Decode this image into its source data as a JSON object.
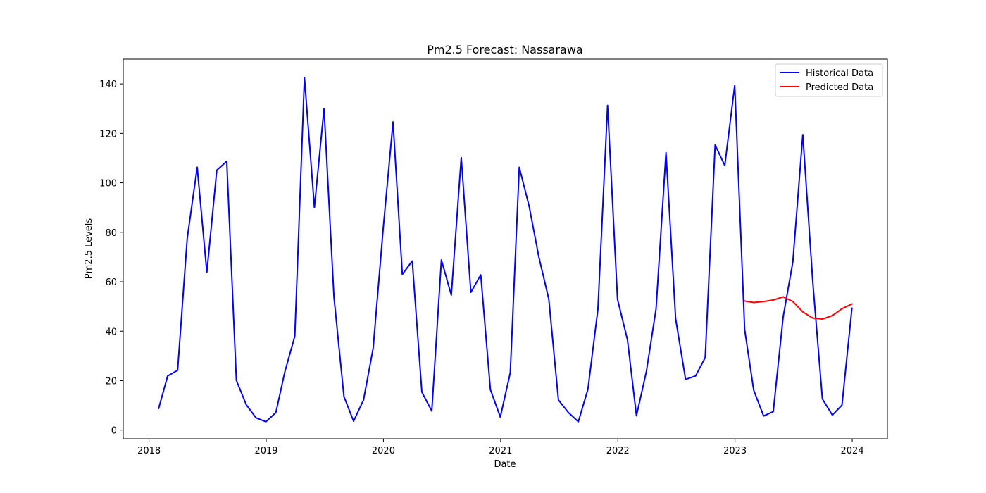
{
  "chart_data": {
    "type": "line",
    "title": "Pm2.5 Forecast: Nassarawa",
    "xlabel": "Date",
    "ylabel": "Pm2.5 Levels",
    "xlim": [
      2017.78,
      2024.3
    ],
    "ylim": [
      -3.5,
      150
    ],
    "x_ticks": [
      2018,
      2019,
      2020,
      2021,
      2022,
      2023,
      2024
    ],
    "x_tick_labels": [
      "2018",
      "2019",
      "2020",
      "2021",
      "2022",
      "2023",
      "2024"
    ],
    "y_ticks": [
      0,
      20,
      40,
      60,
      80,
      100,
      120,
      140
    ],
    "y_tick_labels": [
      "0",
      "20",
      "40",
      "60",
      "80",
      "100",
      "120",
      "140"
    ],
    "grid": false,
    "legend_position": "top-right",
    "series": [
      {
        "name": "Historical Data",
        "color": "#0000ff",
        "x": [
          "2018-01-31",
          "2018-02-28",
          "2018-03-31",
          "2018-04-30",
          "2018-05-31",
          "2018-06-30",
          "2018-07-31",
          "2018-08-31",
          "2018-09-30",
          "2018-10-31",
          "2018-11-30",
          "2018-12-31",
          "2019-01-31",
          "2019-02-28",
          "2019-03-31",
          "2019-04-30",
          "2019-05-31",
          "2019-06-30",
          "2019-07-31",
          "2019-08-31",
          "2019-09-30",
          "2019-10-31",
          "2019-11-30",
          "2019-12-31",
          "2020-01-31",
          "2020-02-29",
          "2020-03-31",
          "2020-04-30",
          "2020-05-31",
          "2020-06-30",
          "2020-07-31",
          "2020-08-31",
          "2020-09-30",
          "2020-10-31",
          "2020-11-30",
          "2020-12-31",
          "2021-01-31",
          "2021-02-28",
          "2021-03-31",
          "2021-04-30",
          "2021-05-31",
          "2021-06-30",
          "2021-07-31",
          "2021-08-31",
          "2021-09-30",
          "2021-10-31",
          "2021-11-30",
          "2021-12-31",
          "2022-01-31",
          "2022-02-28",
          "2022-03-31",
          "2022-04-30",
          "2022-05-31",
          "2022-06-30",
          "2022-07-31",
          "2022-08-31",
          "2022-09-30",
          "2022-10-31",
          "2022-11-30",
          "2022-12-31",
          "2023-01-31",
          "2023-02-28",
          "2023-03-31",
          "2023-04-30",
          "2023-05-31",
          "2023-06-30",
          "2023-07-31",
          "2023-08-31",
          "2023-09-30",
          "2023-10-31",
          "2023-11-30",
          "2023-12-31"
        ],
        "values": [
          8.8,
          21.9,
          24.2,
          77.6,
          106.3,
          63.8,
          105.1,
          108.7,
          20.1,
          10.2,
          5.0,
          3.4,
          7.1,
          23.6,
          38.0,
          142.6,
          90.0,
          130.0,
          53.7,
          13.6,
          3.6,
          12.2,
          33.1,
          81.1,
          124.6,
          63.0,
          68.4,
          15.4,
          7.7,
          68.8,
          54.6,
          110.2,
          55.7,
          62.8,
          16.4,
          5.3,
          23.2,
          106.3,
          90.4,
          70.0,
          53.0,
          12.2,
          7.1,
          3.4,
          16.6,
          49.0,
          131.3,
          52.9,
          36.5,
          5.8,
          23.8,
          49.0,
          112.2,
          45.0,
          20.5,
          21.9,
          29.3,
          115.3,
          107.0,
          139.4,
          40.6,
          16.2,
          5.7,
          7.5,
          45.9,
          68.0,
          119.5,
          60.0,
          12.6,
          6.1,
          10.1,
          49.3
        ]
      },
      {
        "name": "Predicted Data",
        "color": "#ff0000",
        "x": [
          "2023-01-31",
          "2023-02-28",
          "2023-03-31",
          "2023-04-30",
          "2023-05-31",
          "2023-06-30",
          "2023-07-31",
          "2023-08-31",
          "2023-09-30",
          "2023-10-31",
          "2023-11-30",
          "2023-12-31"
        ],
        "values": [
          52.2,
          51.6,
          52.0,
          52.6,
          53.9,
          52.0,
          47.8,
          45.3,
          44.9,
          46.3,
          49.1,
          51.0
        ]
      }
    ]
  }
}
